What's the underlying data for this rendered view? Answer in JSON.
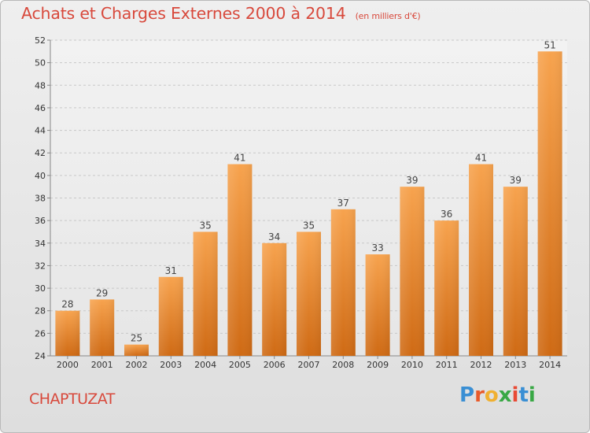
{
  "title": "Achats et Charges Externes 2000 à 2014",
  "unit": "(en milliers d'€)",
  "commune": "CHAPTUZAT",
  "logo": {
    "letters": [
      "P",
      "r",
      "o",
      "x",
      "i",
      "t",
      "i"
    ],
    "colors": [
      "#3a8fd4",
      "#e85a2a",
      "#f0b030",
      "#39a845",
      "#e84a35",
      "#3a8fd4",
      "#39a845"
    ]
  },
  "colors": {
    "bar_top": "#f7a34e",
    "bar_bottom": "#cf6a14",
    "title": "#d8493c"
  },
  "chart_data": {
    "type": "bar",
    "title": "Achats et Charges Externes 2000 à 2014",
    "subtitle": "(en milliers d'€)",
    "categories": [
      "2000",
      "2001",
      "2002",
      "2003",
      "2004",
      "2005",
      "2006",
      "2007",
      "2008",
      "2009",
      "2010",
      "2011",
      "2012",
      "2013",
      "2014"
    ],
    "values": [
      28,
      29,
      25,
      31,
      35,
      41,
      34,
      35,
      37,
      33,
      39,
      36,
      41,
      39,
      51
    ],
    "ylim": [
      24,
      52
    ],
    "yticks": [
      24,
      26,
      28,
      30,
      32,
      34,
      36,
      38,
      40,
      42,
      44,
      46,
      48,
      50,
      52
    ],
    "grid": true,
    "legend": "none"
  }
}
